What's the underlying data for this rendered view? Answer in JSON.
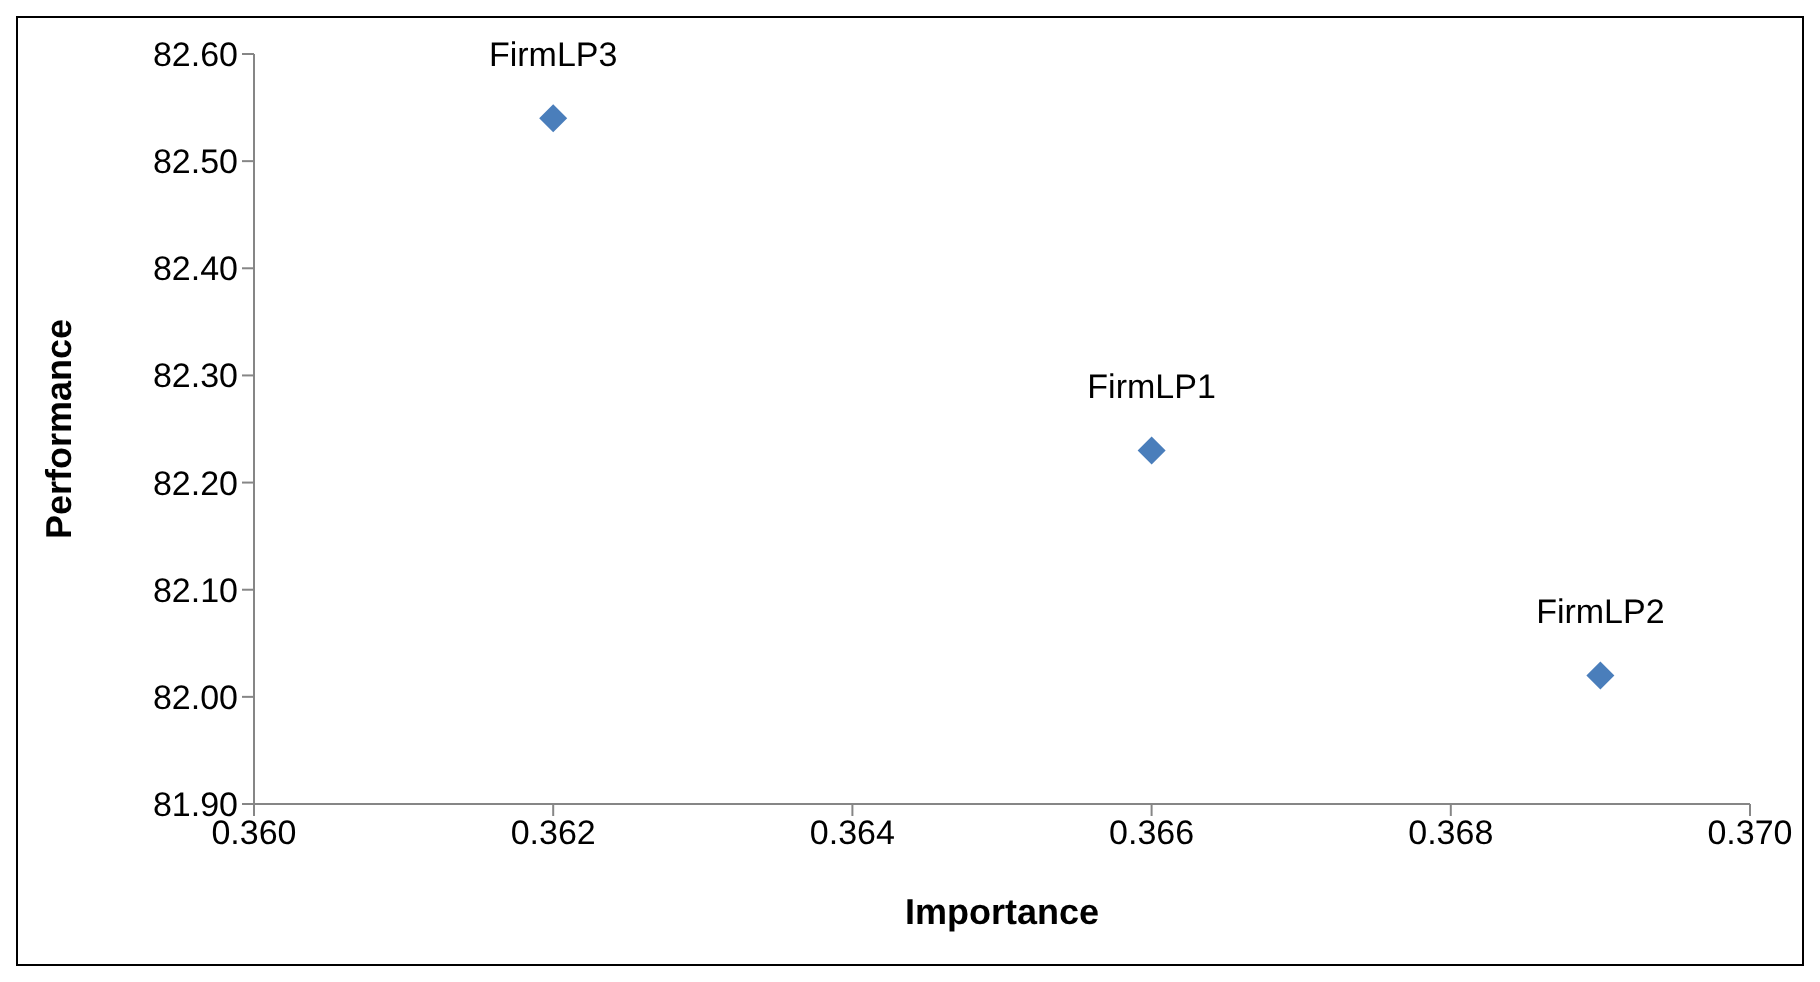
{
  "chart_data": {
    "type": "scatter",
    "xlabel": "Importance",
    "ylabel": "Performance",
    "x": [
      0.362,
      0.366,
      0.369
    ],
    "series": [
      {
        "color": "#4a7ebb",
        "values": [
          82.54,
          82.23,
          82.02
        ]
      }
    ],
    "xlim": [
      0.36,
      0.37
    ],
    "xticks": [
      {
        "value": 0.36,
        "label": "0.360"
      },
      {
        "value": 0.362,
        "label": "0.362"
      },
      {
        "value": 0.364,
        "label": "0.364"
      },
      {
        "value": 0.366,
        "label": "0.366"
      },
      {
        "value": 0.368,
        "label": "0.368"
      },
      {
        "value": 0.37,
        "label": "0.370"
      }
    ],
    "ylim": [
      81.9,
      82.6
    ],
    "yticks": [
      {
        "value": 81.9,
        "label": "81.90"
      },
      {
        "value": 82.0,
        "label": "82.00"
      },
      {
        "value": 82.1,
        "label": "82.10"
      },
      {
        "value": 82.2,
        "label": "82.20"
      },
      {
        "value": 82.3,
        "label": "82.30"
      },
      {
        "value": 82.4,
        "label": "82.40"
      },
      {
        "value": 82.5,
        "label": "82.50"
      },
      {
        "value": 82.6,
        "label": "82.60"
      }
    ],
    "annotations": [
      {
        "text": "FirmLP3",
        "x": 0.362,
        "y": 82.54
      },
      {
        "text": "FirmLP1",
        "x": 0.366,
        "y": 82.23
      },
      {
        "text": "FirmLP2",
        "x": 0.369,
        "y": 82.02
      }
    ],
    "grid": false,
    "legend": false,
    "marker": "diamond"
  }
}
